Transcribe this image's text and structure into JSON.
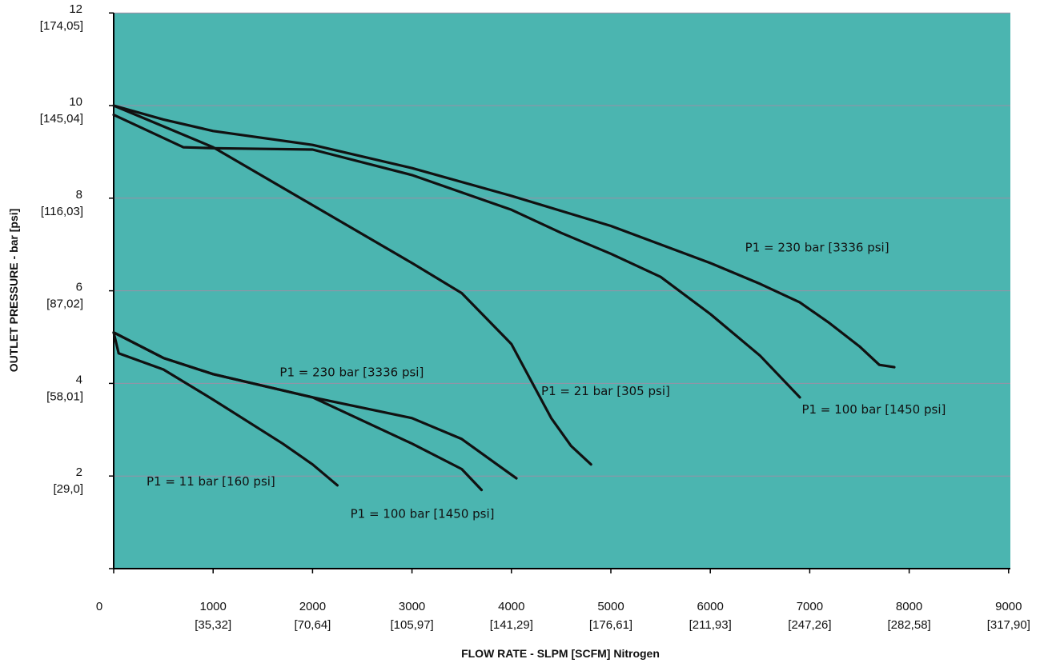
{
  "chart_data": {
    "type": "line",
    "title": "",
    "xlabel": "FLOW RATE - SLPM [SCFM] Nitrogen",
    "ylabel": "OUTLET PRESSURE - bar [psi]",
    "xlim": [
      0,
      9000
    ],
    "ylim": [
      0,
      12
    ],
    "grid": "horizontal",
    "plot_background": "#4bb5b0",
    "gridline_color": "#9a8fa6",
    "line_color": "#111111",
    "x_ticks": [
      {
        "value": 0,
        "label": "0",
        "sublabel": ""
      },
      {
        "value": 1000,
        "label": "1000",
        "sublabel": "[35,32]"
      },
      {
        "value": 2000,
        "label": "2000",
        "sublabel": "[70,64]"
      },
      {
        "value": 3000,
        "label": "3000",
        "sublabel": "[105,97]"
      },
      {
        "value": 4000,
        "label": "4000",
        "sublabel": "[141,29]"
      },
      {
        "value": 5000,
        "label": "5000",
        "sublabel": "[176,61]"
      },
      {
        "value": 6000,
        "label": "6000",
        "sublabel": "[211,93]"
      },
      {
        "value": 7000,
        "label": "7000",
        "sublabel": "[247,26]"
      },
      {
        "value": 8000,
        "label": "8000",
        "sublabel": "[282,58]"
      },
      {
        "value": 9000,
        "label": "9000",
        "sublabel": "[317,90]"
      }
    ],
    "y_ticks": [
      {
        "value": 2,
        "label": "2",
        "sublabel": "[29,0]"
      },
      {
        "value": 4,
        "label": "4",
        "sublabel": "[58,01]"
      },
      {
        "value": 6,
        "label": "6",
        "sublabel": "[87,02]"
      },
      {
        "value": 8,
        "label": "8",
        "sublabel": "[116,03]"
      },
      {
        "value": 10,
        "label": "10",
        "sublabel": "[145,04]"
      },
      {
        "value": 12,
        "label": "12",
        "sublabel": "[174,05]"
      }
    ],
    "series": [
      {
        "name": "P1 = 230 bar [3336 psi]",
        "x": [
          0,
          500,
          1000,
          2000,
          3000,
          4000,
          5000,
          6000,
          6500,
          6900,
          7200,
          7500,
          7700,
          7850
        ],
        "y": [
          10,
          9.7,
          9.45,
          9.15,
          8.65,
          8.05,
          7.4,
          6.6,
          6.15,
          5.75,
          5.3,
          4.8,
          4.4,
          4.35
        ]
      },
      {
        "name": "P1 = 100 bar [1450 psi]",
        "x": [
          0,
          700,
          1000,
          2000,
          3000,
          4000,
          4500,
          5000,
          5500,
          6000,
          6500,
          6900
        ],
        "y": [
          9.8,
          9.1,
          9.08,
          9.05,
          8.5,
          7.75,
          7.25,
          6.8,
          6.3,
          5.5,
          4.6,
          3.7
        ]
      },
      {
        "name": "P1 = 21 bar [305 psi]",
        "x": [
          0,
          1000,
          2000,
          3000,
          3500,
          4000,
          4200,
          4400,
          4600,
          4800
        ],
        "y": [
          10,
          9.1,
          7.85,
          6.6,
          5.95,
          4.85,
          4.05,
          3.25,
          2.65,
          2.25
        ]
      },
      {
        "name": "P1 = 230 bar [3336 psi]",
        "x": [
          0,
          500,
          1000,
          2000,
          3000,
          3500,
          4050
        ],
        "y": [
          5.1,
          4.55,
          4.2,
          3.7,
          3.25,
          2.8,
          1.95
        ]
      },
      {
        "name": "P1 = 100 bar [1450 psi]",
        "x": [
          0,
          500,
          1000,
          2000,
          3000,
          3500,
          3700
        ],
        "y": [
          5.1,
          4.55,
          4.2,
          3.7,
          2.7,
          2.15,
          1.7
        ]
      },
      {
        "name": "P1 = 11 bar [160 psi]",
        "x": [
          0,
          50,
          500,
          1000,
          1700,
          2000,
          2250
        ],
        "y": [
          5.1,
          4.65,
          4.3,
          3.65,
          2.7,
          2.25,
          1.8
        ]
      }
    ],
    "annotations": [
      {
        "text": "P1 = 230 bar [3336 psi]",
        "x": 6350,
        "y": 6.85
      },
      {
        "text": "P1 = 100 bar [1450 psi]",
        "x": 6920,
        "y": 3.35
      },
      {
        "text": "P1 = 21 bar [305 psi]",
        "x": 4300,
        "y": 3.75
      },
      {
        "text": "P1 = 230 bar [3336 psi]",
        "x": 1670,
        "y": 4.15
      },
      {
        "text": "P1 = 11 bar [160 psi]",
        "x": 330,
        "y": 1.8
      },
      {
        "text": "P1 = 100 bar [1450 psi]",
        "x": 2380,
        "y": 1.1
      }
    ]
  }
}
